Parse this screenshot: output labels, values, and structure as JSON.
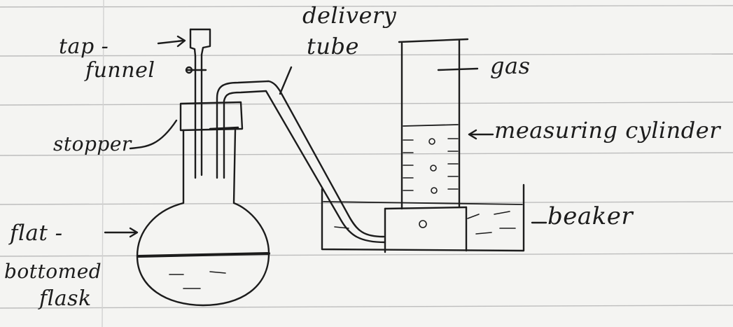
{
  "labels": {
    "tap_funnel_line1": "tap -",
    "tap_funnel_line2": "funnel",
    "delivery_tube_line1": "delivery",
    "delivery_tube_line2": "tube",
    "gas": "gas",
    "measuring_cylinder": "measuring cylinder",
    "stopper": "stopper",
    "beaker": "beaker",
    "flat_bottomed_flask_line1": "flat -",
    "flat_bottomed_flask_line2": "bottomed",
    "flat_bottomed_flask_line3": "flask"
  },
  "colors": {
    "paper": "#f4f4f2",
    "ruled_line": "#b9b9b9",
    "ink": "#1c1c1c"
  }
}
